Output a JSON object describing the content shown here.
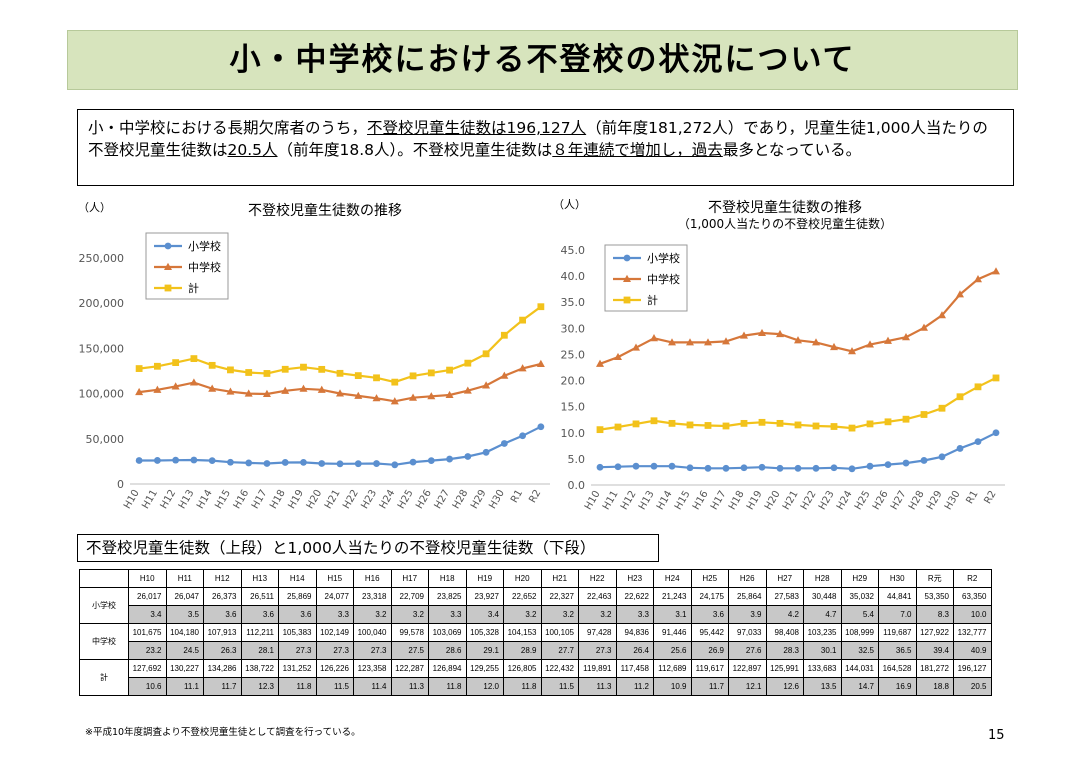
{
  "title": "小・中学校における不登校の状況について",
  "summary": {
    "p1": "小・中学校における長期欠席者のうち，",
    "u1": "不登校児童生徒数は196,127人",
    "p2": "（前年度181,272人）であり，児童生徒1,000人当たりの不登校児童生徒数は",
    "u2": "20.5人",
    "p3": "（前年度18.8人）。不登校児童生徒数は",
    "u3": "８年連続で増加し，過去",
    "p4": "最多となっている。"
  },
  "colors": {
    "elementary": "#5b8fcf",
    "junior": "#d6773a",
    "total": "#f2c21b",
    "title_bg": "#d7e4bd"
  },
  "chart_data": [
    {
      "type": "line",
      "title": "不登校児童生徒数の推移",
      "ylabel": "（人）",
      "ylim": [
        0,
        250000
      ],
      "yticks": [
        "0",
        "50,000",
        "100,000",
        "150,000",
        "200,000",
        "250,000"
      ],
      "x": [
        "H10",
        "H11",
        "H12",
        "H13",
        "H14",
        "H15",
        "H16",
        "H17",
        "H18",
        "H19",
        "H20",
        "H21",
        "H22",
        "H23",
        "H24",
        "H25",
        "H26",
        "H27",
        "H28",
        "H29",
        "H30",
        "R1",
        "R2"
      ],
      "legend_position": "top-left",
      "series": [
        {
          "name": "小学校",
          "marker": "circle",
          "values": [
            26017,
            26047,
            26373,
            26511,
            25869,
            24077,
            23318,
            22709,
            23825,
            23927,
            22652,
            22327,
            22463,
            22622,
            21243,
            24175,
            25864,
            27583,
            30448,
            35032,
            44841,
            53350,
            63350
          ]
        },
        {
          "name": "中学校",
          "marker": "triangle",
          "values": [
            101675,
            104180,
            107913,
            112211,
            105383,
            102149,
            100040,
            99578,
            103069,
            105328,
            104153,
            100105,
            97428,
            94836,
            91446,
            95442,
            97033,
            98408,
            103235,
            108999,
            119687,
            127922,
            132777
          ]
        },
        {
          "name": "計",
          "marker": "square",
          "values": [
            127692,
            130227,
            134286,
            138722,
            131252,
            126226,
            123358,
            122287,
            126894,
            129255,
            126805,
            122432,
            119891,
            117458,
            112689,
            119617,
            122897,
            125991,
            133683,
            144031,
            164528,
            181272,
            196127
          ]
        }
      ]
    },
    {
      "type": "line",
      "title": "不登校児童生徒数の推移",
      "subtitle": "（1,000人当たりの不登校児童生徒数）",
      "ylabel": "（人）",
      "ylim": [
        0,
        45
      ],
      "yticks": [
        "0.0",
        "5.0",
        "10.0",
        "15.0",
        "20.0",
        "25.0",
        "30.0",
        "35.0",
        "40.0",
        "45.0"
      ],
      "x": [
        "H10",
        "H11",
        "H12",
        "H13",
        "H14",
        "H15",
        "H16",
        "H17",
        "H18",
        "H19",
        "H20",
        "H21",
        "H22",
        "H23",
        "H24",
        "H25",
        "H26",
        "H27",
        "H28",
        "H29",
        "H30",
        "R1",
        "R2"
      ],
      "legend_position": "top-left",
      "series": [
        {
          "name": "小学校",
          "marker": "circle",
          "values": [
            3.4,
            3.5,
            3.6,
            3.6,
            3.6,
            3.3,
            3.2,
            3.2,
            3.3,
            3.4,
            3.2,
            3.2,
            3.2,
            3.3,
            3.1,
            3.6,
            3.9,
            4.2,
            4.7,
            5.4,
            7.0,
            8.3,
            10.0
          ]
        },
        {
          "name": "中学校",
          "marker": "triangle",
          "values": [
            23.2,
            24.5,
            26.3,
            28.1,
            27.3,
            27.3,
            27.3,
            27.5,
            28.6,
            29.1,
            28.9,
            27.7,
            27.3,
            26.4,
            25.6,
            26.9,
            27.6,
            28.3,
            30.1,
            32.5,
            36.5,
            39.4,
            40.9
          ]
        },
        {
          "name": "計",
          "marker": "square",
          "values": [
            10.6,
            11.1,
            11.7,
            12.3,
            11.8,
            11.5,
            11.4,
            11.3,
            11.8,
            12.0,
            11.8,
            11.5,
            11.3,
            11.2,
            10.9,
            11.7,
            12.1,
            12.6,
            13.5,
            14.7,
            16.9,
            18.8,
            20.5
          ]
        }
      ]
    },
    {
      "type": "table",
      "title": "不登校児童生徒数（上段）と1,000人当たりの不登校児童生徒数（下段）",
      "columns": [
        "H10",
        "H11",
        "H12",
        "H13",
        "H14",
        "H15",
        "H16",
        "H17",
        "H18",
        "H19",
        "H20",
        "H21",
        "H22",
        "H23",
        "H24",
        "H25",
        "H26",
        "H27",
        "H28",
        "H29",
        "H30",
        "R元",
        "R2"
      ],
      "rows": [
        {
          "label": "小学校",
          "counts": [
            "26,017",
            "26,047",
            "26,373",
            "26,511",
            "25,869",
            "24,077",
            "23,318",
            "22,709",
            "23,825",
            "23,927",
            "22,652",
            "22,327",
            "22,463",
            "22,622",
            "21,243",
            "24,175",
            "25,864",
            "27,583",
            "30,448",
            "35,032",
            "44,841",
            "53,350",
            "63,350"
          ],
          "rates": [
            "3.4",
            "3.5",
            "3.6",
            "3.6",
            "3.6",
            "3.3",
            "3.2",
            "3.2",
            "3.3",
            "3.4",
            "3.2",
            "3.2",
            "3.2",
            "3.3",
            "3.1",
            "3.6",
            "3.9",
            "4.2",
            "4.7",
            "5.4",
            "7.0",
            "8.3",
            "10.0"
          ]
        },
        {
          "label": "中学校",
          "counts": [
            "101,675",
            "104,180",
            "107,913",
            "112,211",
            "105,383",
            "102,149",
            "100,040",
            "99,578",
            "103,069",
            "105,328",
            "104,153",
            "100,105",
            "97,428",
            "94,836",
            "91,446",
            "95,442",
            "97,033",
            "98,408",
            "103,235",
            "108,999",
            "119,687",
            "127,922",
            "132,777"
          ],
          "rates": [
            "23.2",
            "24.5",
            "26.3",
            "28.1",
            "27.3",
            "27.3",
            "27.3",
            "27.5",
            "28.6",
            "29.1",
            "28.9",
            "27.7",
            "27.3",
            "26.4",
            "25.6",
            "26.9",
            "27.6",
            "28.3",
            "30.1",
            "32.5",
            "36.5",
            "39.4",
            "40.9"
          ]
        },
        {
          "label": "計",
          "counts": [
            "127,692",
            "130,227",
            "134,286",
            "138,722",
            "131,252",
            "126,226",
            "123,358",
            "122,287",
            "126,894",
            "129,255",
            "126,805",
            "122,432",
            "119,891",
            "117,458",
            "112,689",
            "119,617",
            "122,897",
            "125,991",
            "133,683",
            "144,031",
            "164,528",
            "181,272",
            "196,127"
          ],
          "rates": [
            "10.6",
            "11.1",
            "11.7",
            "12.3",
            "11.8",
            "11.5",
            "11.4",
            "11.3",
            "11.8",
            "12.0",
            "11.8",
            "11.5",
            "11.3",
            "11.2",
            "10.9",
            "11.7",
            "12.1",
            "12.6",
            "13.5",
            "14.7",
            "16.9",
            "18.8",
            "20.5"
          ]
        }
      ]
    }
  ],
  "footnote": "※平成10年度調査より不登校児童生徒として調査を行っている。",
  "page_number": "15"
}
